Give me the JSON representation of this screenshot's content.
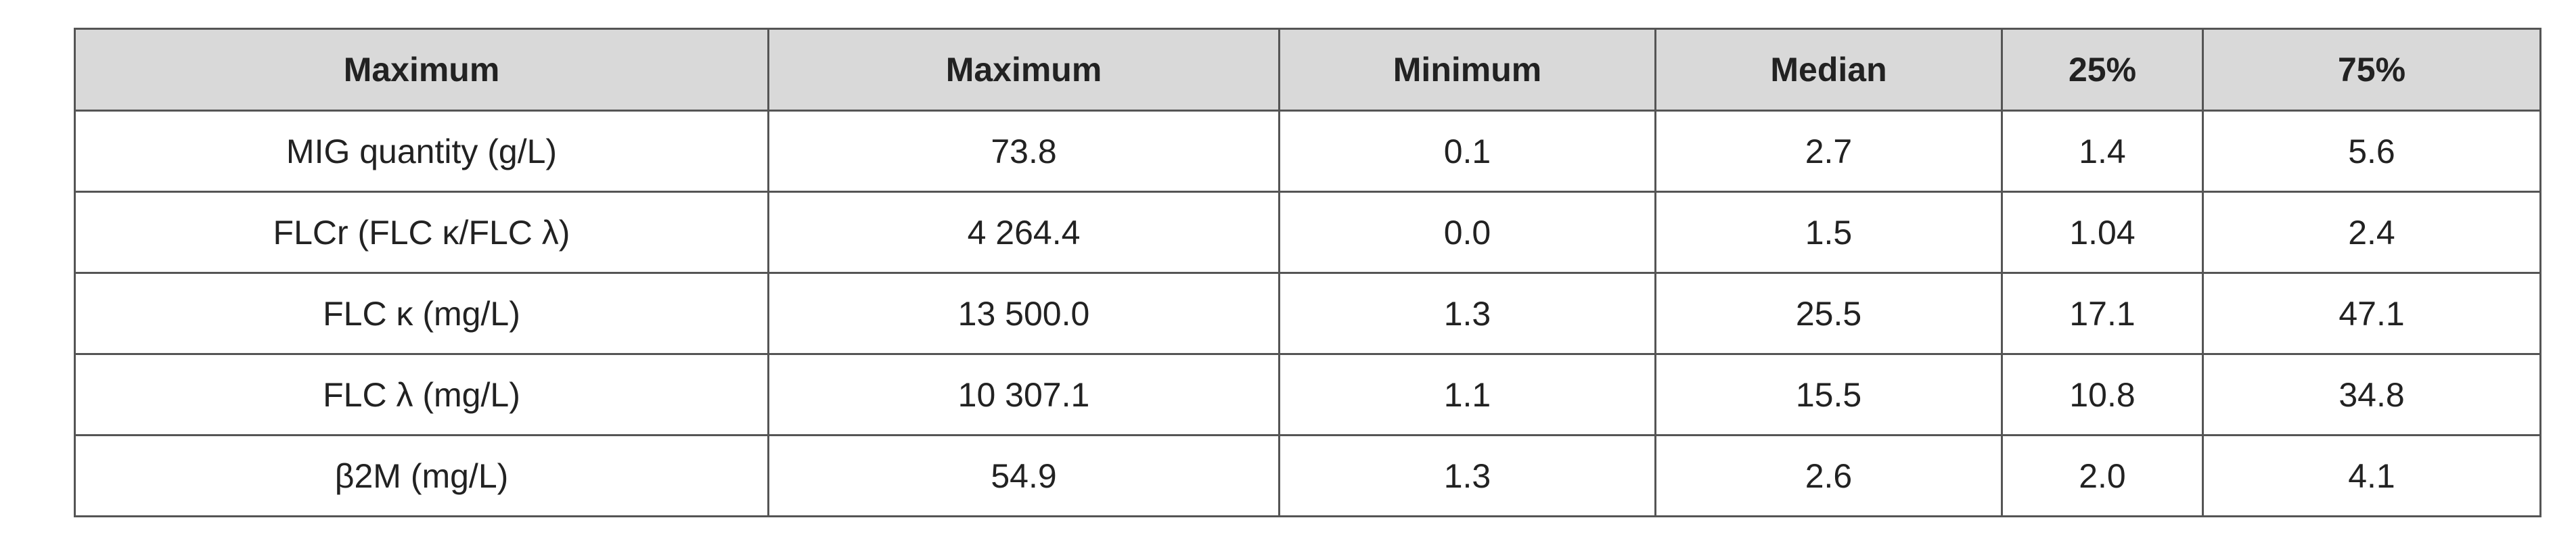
{
  "table": {
    "header": [
      "Maximum",
      "Maximum",
      "Minimum",
      "Median",
      "25%",
      "75%"
    ],
    "rows": [
      [
        "MIG quantity (g/L)",
        "73.8",
        "0.1",
        "2.7",
        "1.4",
        "5.6"
      ],
      [
        "FLCr (FLC κ/FLC λ)",
        "4 264.4",
        "0.0",
        "1.5",
        "1.04",
        "2.4"
      ],
      [
        "FLC κ (mg/L)",
        "13 500.0",
        "1.3",
        "25.5",
        "17.1",
        "47.1"
      ],
      [
        "FLC λ (mg/L)",
        "10 307.1",
        "1.1",
        "15.5",
        "10.8",
        "34.8"
      ],
      [
        "β2M (mg/L)",
        "54.9",
        "1.3",
        "2.6",
        "2.0",
        "4.1"
      ]
    ]
  }
}
